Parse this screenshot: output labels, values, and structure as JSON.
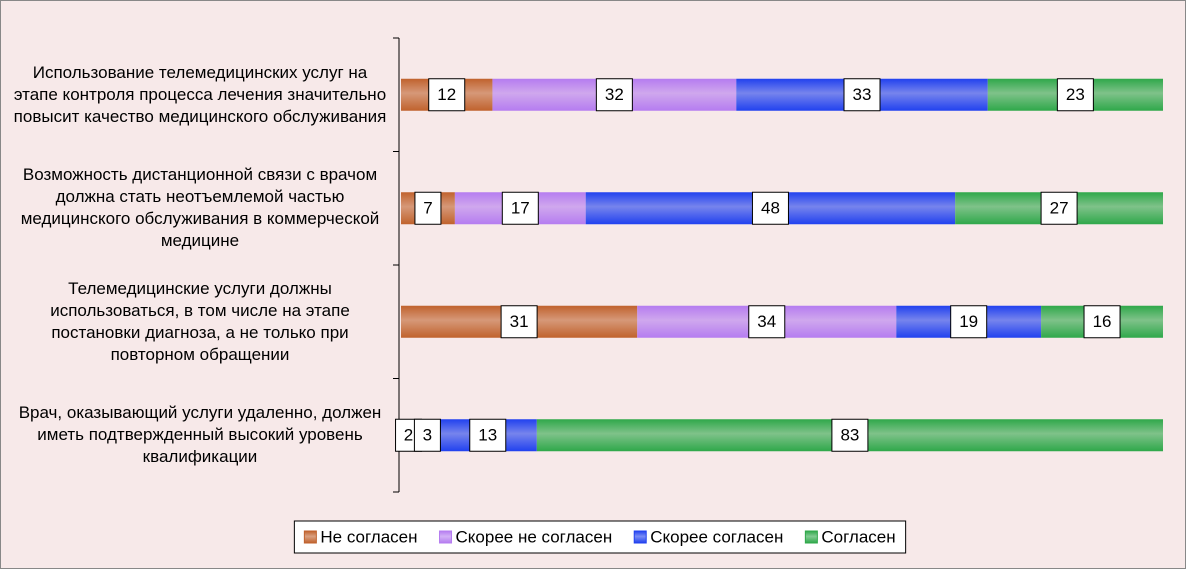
{
  "chart_data": {
    "type": "bar",
    "orientation": "horizontal",
    "stacked": "percent",
    "categories": [
      "Использование телемедицинских услуг на этапе контроля процесса лечения значительно повысит качество медицинского обслуживания",
      "Возможность дистанционной связи с врачом должна стать неотъемлемой частью медицинского обслуживания в коммерческой медицине",
      "Телемедицинские услуги должны использоваться, в том числе на этапе постановки диагноза, а не только при повторном обращении",
      "Врач, оказывающий услуги удаленно, должен иметь подтвержденный высокий уровень квалификации"
    ],
    "series": [
      {
        "name": "Не согласен",
        "color": "#c0622d",
        "values": [
          12,
          7,
          31,
          2
        ]
      },
      {
        "name": "Скорее не согласен",
        "color": "#b57cf0",
        "values": [
          32,
          17,
          34,
          3
        ]
      },
      {
        "name": "Скорее согласен",
        "color": "#2141ef",
        "values": [
          33,
          48,
          19,
          13
        ]
      },
      {
        "name": "Согласен",
        "color": "#2fa84a",
        "values": [
          23,
          27,
          16,
          83
        ]
      }
    ],
    "legend": "bottom"
  }
}
